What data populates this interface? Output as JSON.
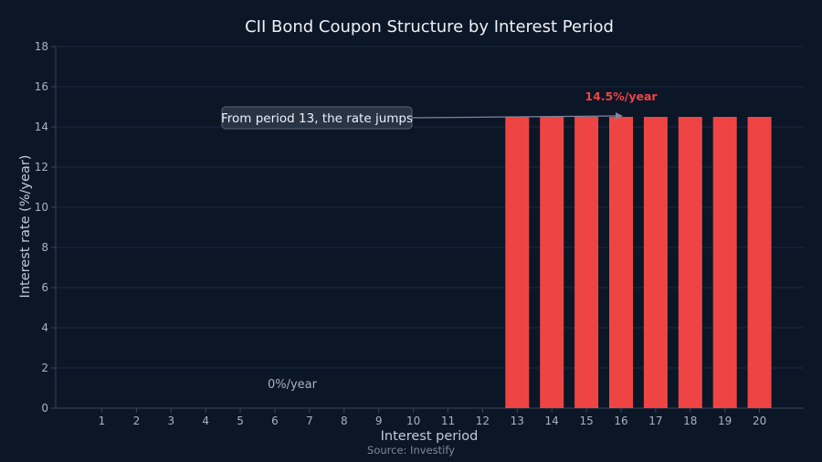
{
  "chart_data": {
    "type": "bar",
    "title": "CII Bond Coupon Structure by Interest Period",
    "xlabel": "Interest period",
    "ylabel": "Interest rate (%/year)",
    "categories": [
      "1",
      "2",
      "3",
      "4",
      "5",
      "6",
      "7",
      "8",
      "9",
      "10",
      "11",
      "12",
      "13",
      "14",
      "15",
      "16",
      "17",
      "18",
      "19",
      "20"
    ],
    "values": [
      0,
      0,
      0,
      0,
      0,
      0,
      0,
      0,
      0,
      0,
      0,
      0,
      14.5,
      14.5,
      14.5,
      14.5,
      14.5,
      14.5,
      14.5,
      14.5
    ],
    "ylim": [
      0,
      18
    ],
    "yticks": [
      0,
      2,
      4,
      6,
      8,
      10,
      12,
      14,
      16,
      18
    ],
    "grid": true,
    "bar_color": "#ef4444",
    "annotations": {
      "high_label": "14.5%/year",
      "low_label": "0%/year",
      "callout": "From period 13, the rate jumps",
      "callout_target": {
        "x": "16",
        "y": 14.5
      }
    },
    "source": "Source: Investify"
  }
}
